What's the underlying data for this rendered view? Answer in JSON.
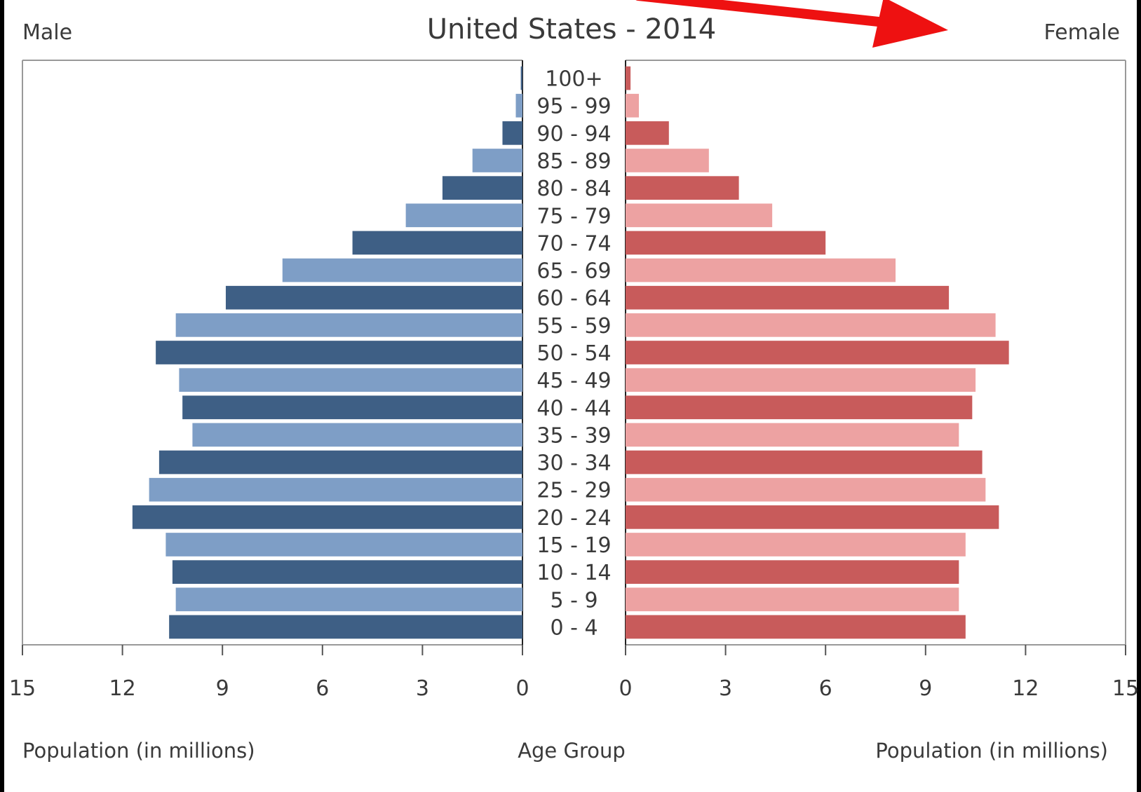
{
  "chart_data": {
    "type": "bar",
    "orientation": "horizontal",
    "layout": "population-pyramid",
    "title": "United States - 2014",
    "left_label": "Male",
    "right_label": "Female",
    "xlabel_left": "Population (in millions)",
    "xlabel_center": "Age Group",
    "xlabel_right": "Population (in millions)",
    "xlim": [
      0,
      15
    ],
    "x_ticks": [
      0,
      3,
      6,
      9,
      12,
      15
    ],
    "grid": false,
    "categories": [
      "0 - 4",
      "5 - 9",
      "10 - 14",
      "15 - 19",
      "20 - 24",
      "25 - 29",
      "30 - 34",
      "35 - 39",
      "40 - 44",
      "45 - 49",
      "50 - 54",
      "55 - 59",
      "60 - 64",
      "65 - 69",
      "70 - 74",
      "75 - 79",
      "80 - 84",
      "85 - 89",
      "90 - 94",
      "95 - 99",
      "100+"
    ],
    "series": [
      {
        "name": "Male",
        "side": "left",
        "colors": [
          "#3e5f85",
          "#7e9ec6"
        ],
        "values": [
          10.6,
          10.4,
          10.5,
          10.7,
          11.7,
          11.2,
          10.9,
          9.9,
          10.2,
          10.3,
          11.0,
          10.4,
          8.9,
          7.2,
          5.1,
          3.5,
          2.4,
          1.5,
          0.6,
          0.2,
          0.05
        ]
      },
      {
        "name": "Female",
        "side": "right",
        "colors": [
          "#c85b5b",
          "#eda2a2"
        ],
        "values": [
          10.2,
          10.0,
          10.0,
          10.2,
          11.2,
          10.8,
          10.7,
          10.0,
          10.4,
          10.5,
          11.5,
          11.1,
          9.7,
          8.1,
          6.0,
          4.4,
          3.4,
          2.5,
          1.3,
          0.4,
          0.15
        ]
      }
    ]
  },
  "annotation": {
    "type": "arrow",
    "color": "#ee1111"
  }
}
